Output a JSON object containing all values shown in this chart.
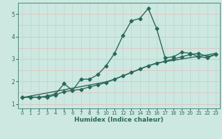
{
  "xlabel": "Humidex (Indice chaleur)",
  "ylabel": "",
  "background_color": "#cce8e0",
  "grid_color_h": "#e8b8b8",
  "grid_color_v": "#b8d8d0",
  "line_color": "#2a6858",
  "tick_color": "#2a6858",
  "xlim": [
    -0.5,
    23.5
  ],
  "ylim": [
    0.8,
    5.5
  ],
  "x": [
    0,
    1,
    2,
    3,
    4,
    5,
    6,
    7,
    8,
    9,
    10,
    11,
    12,
    13,
    14,
    15,
    16,
    17,
    18,
    19,
    20,
    21,
    22,
    23
  ],
  "y_main": [
    1.3,
    1.3,
    1.3,
    1.35,
    1.45,
    1.9,
    1.6,
    2.1,
    2.1,
    2.3,
    2.7,
    3.25,
    4.05,
    4.7,
    4.8,
    5.25,
    4.35,
    3.05,
    3.1,
    3.3,
    3.25,
    3.1,
    3.05,
    3.2
  ],
  "y_low": [
    1.3,
    1.3,
    1.3,
    1.3,
    1.4,
    1.55,
    1.6,
    1.65,
    1.75,
    1.85,
    1.95,
    2.1,
    2.25,
    2.4,
    2.55,
    2.7,
    2.8,
    2.9,
    3.0,
    3.1,
    3.2,
    3.25,
    3.1,
    3.2
  ],
  "y_trend": [
    1.28,
    1.35,
    1.42,
    1.49,
    1.56,
    1.63,
    1.7,
    1.77,
    1.84,
    1.91,
    1.98,
    2.1,
    2.25,
    2.4,
    2.55,
    2.7,
    2.82,
    2.88,
    2.94,
    3.0,
    3.06,
    3.12,
    3.18,
    3.25
  ],
  "xticks": [
    0,
    1,
    2,
    3,
    4,
    5,
    6,
    7,
    8,
    9,
    10,
    11,
    12,
    13,
    14,
    15,
    16,
    17,
    18,
    19,
    20,
    21,
    22,
    23
  ],
  "yticks": [
    1,
    2,
    3,
    4,
    5
  ],
  "marker_size": 2.5,
  "line_width": 1.0
}
